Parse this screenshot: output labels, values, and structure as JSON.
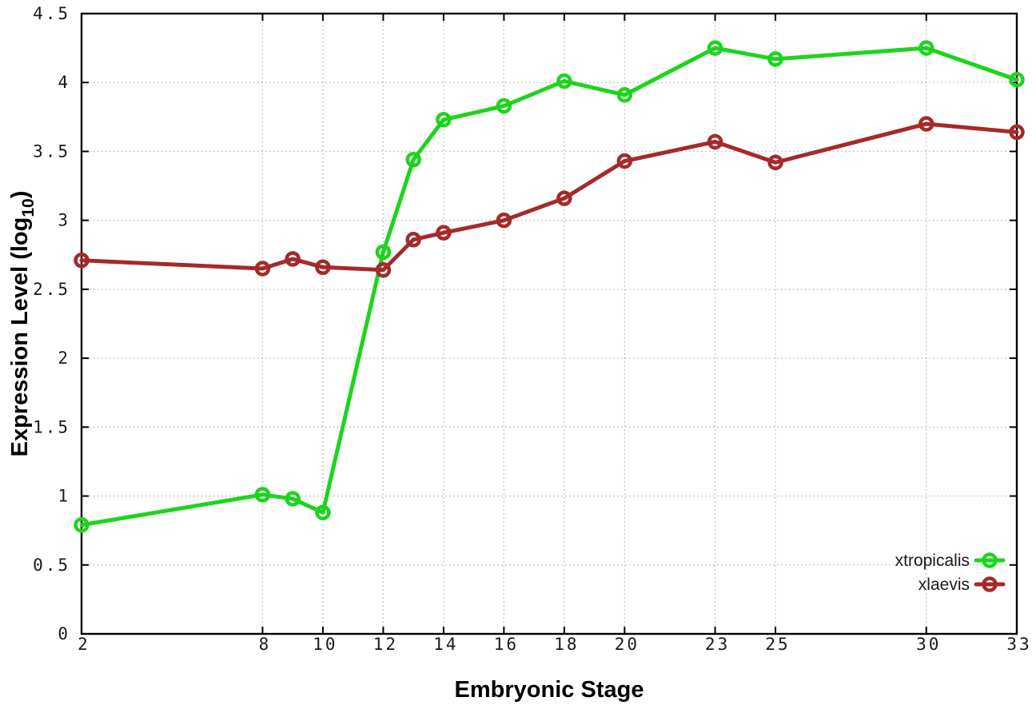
{
  "chart_data": {
    "type": "line",
    "title": "",
    "xlabel": "Embryonic Stage",
    "ylabel": {
      "text": "Expression Level (log10)",
      "prefix": "Expression Level (log",
      "sub": "10",
      "suffix": ")"
    },
    "x": [
      2,
      8,
      9,
      10,
      12,
      13,
      14,
      16,
      18,
      20,
      23,
      25,
      30,
      33
    ],
    "series": [
      {
        "name": "xtropicalis",
        "color": "#1dd41d",
        "values": [
          0.79,
          1.01,
          0.98,
          0.88,
          2.77,
          3.44,
          3.73,
          3.83,
          4.01,
          3.91,
          4.25,
          4.17,
          4.25,
          4.02
        ]
      },
      {
        "name": "xlaevis",
        "color": "#a52a2a",
        "values": [
          2.71,
          2.65,
          2.72,
          2.66,
          2.64,
          2.86,
          2.91,
          3.0,
          3.16,
          3.43,
          3.57,
          3.42,
          3.7,
          3.64
        ]
      }
    ],
    "xticks": [
      2,
      8,
      10,
      12,
      14,
      16,
      18,
      20,
      23,
      25,
      30,
      33
    ],
    "yticks": [
      0,
      0.5,
      1,
      1.5,
      2,
      2.5,
      3,
      3.5,
      4,
      4.5
    ],
    "xlim": [
      2,
      33
    ],
    "ylim": [
      0,
      4.5
    ],
    "grid": true,
    "legend_position": "bottom-right",
    "colors": {
      "axis": "#000000",
      "grid": "#b5b5b5",
      "tick_text": "#1a1a1a",
      "label_text": "#000000",
      "background": "#ffffff"
    }
  }
}
